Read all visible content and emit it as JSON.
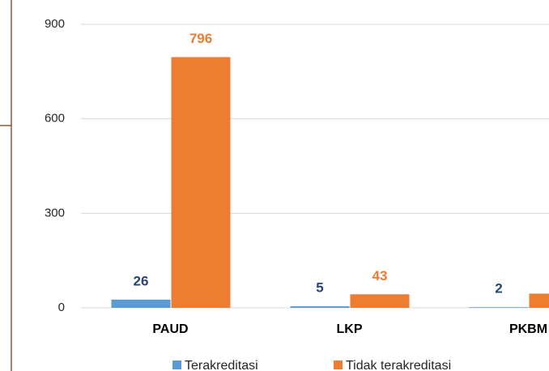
{
  "chart_data": {
    "type": "bar",
    "categories": [
      "PAUD",
      "LKP",
      "PKBM"
    ],
    "series": [
      {
        "name": "Terakreditasi",
        "color": "#5b9bd5",
        "label_color": "#264478",
        "values": [
          26,
          5,
          2
        ]
      },
      {
        "name": "Tidak terakreditasi",
        "color": "#ed7d31",
        "label_color": "#ed7d31",
        "values": [
          796,
          43,
          45
        ]
      }
    ],
    "ylim": [
      0,
      900
    ],
    "yticks": [
      0,
      300,
      600,
      900
    ],
    "grid": true,
    "legend": "bottom"
  }
}
